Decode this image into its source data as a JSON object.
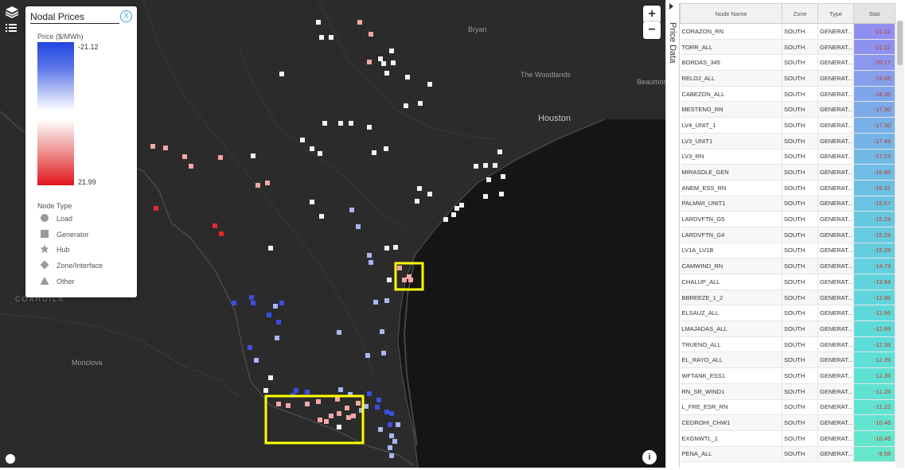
{
  "legend": {
    "title": "Nodal Prices",
    "close_label": "X",
    "units_label": "Price ($/MWh)",
    "value_min": "-21.12",
    "value_max": "21.99",
    "node_type_title": "Node Type",
    "node_types": [
      "Load",
      "Generator",
      "Hub",
      "Zone/Interface",
      "Other"
    ]
  },
  "map": {
    "zoom_in": "+",
    "zoom_out": "−",
    "labels": {
      "bryan": "Bryan",
      "woodlands": "The Woodlands",
      "houston": "Houston",
      "beaumont": "Beaumon",
      "coahuila": "COAHUILA",
      "monclova": "Monclova"
    }
  },
  "side_panel": {
    "tab_label": "Price Data"
  },
  "grid": {
    "columns": [
      "Node Name",
      "Zone",
      "Type",
      "Stat"
    ],
    "rows": [
      [
        "CORAZON_RN",
        "SOUTH",
        "GENERAT...",
        "-21.12"
      ],
      [
        "TORR_ALL",
        "SOUTH",
        "GENERAT...",
        "-21.12"
      ],
      [
        "BORDAS_345",
        "SOUTH",
        "GENERAT...",
        "-20.17"
      ],
      [
        "RELOJ_ALL",
        "SOUTH",
        "GENERAT...",
        "-19.68"
      ],
      [
        "CABEZON_ALL",
        "SOUTH",
        "GENERAT...",
        "-18.36"
      ],
      [
        "MESTENO_RN",
        "SOUTH",
        "GENERAT...",
        "-17.50"
      ],
      [
        "LV4_UNIT_1",
        "SOUTH",
        "GENERAT...",
        "-17.50"
      ],
      [
        "LV3_UNIT1",
        "SOUTH",
        "GENERAT...",
        "-17.49"
      ],
      [
        "LV3_RN",
        "SOUTH",
        "GENERAT...",
        "-17.23"
      ],
      [
        "MIRASOLE_GEN",
        "SOUTH",
        "GENERAT...",
        "-16.86"
      ],
      [
        "ANEM_ESS_RN",
        "SOUTH",
        "GENERAT...",
        "-16.31"
      ],
      [
        "PALMWI_UNIT1",
        "SOUTH",
        "GENERAT...",
        "-15.57"
      ],
      [
        "LARDVFTN_G5",
        "SOUTH",
        "GENERAT...",
        "-15.29"
      ],
      [
        "LARDVFTN_G4",
        "SOUTH",
        "GENERAT...",
        "-15.29"
      ],
      [
        "LV1A_LV1B",
        "SOUTH",
        "GENERAT...",
        "-15.28"
      ],
      [
        "CAMWIND_RN",
        "SOUTH",
        "GENERAT...",
        "-14.73"
      ],
      [
        "CHALUP_ALL",
        "SOUTH",
        "GENERAT...",
        "-13.94"
      ],
      [
        "BBREEZE_1_2",
        "SOUTH",
        "GENERAT...",
        "-12.96"
      ],
      [
        "ELSAUZ_ALL",
        "SOUTH",
        "GENERAT...",
        "-12.96"
      ],
      [
        "LMAJADAS_ALL",
        "SOUTH",
        "GENERAT...",
        "-12.89"
      ],
      [
        "TRUENO_ALL",
        "SOUTH",
        "GENERAT...",
        "-12.39"
      ],
      [
        "EL_RAYO_ALL",
        "SOUTH",
        "GENERAT...",
        "-12.39"
      ],
      [
        "WFTANK_ESS1",
        "SOUTH",
        "GENERAT...",
        "-12.36"
      ],
      [
        "RN_SR_WIND1",
        "SOUTH",
        "GENERAT...",
        "-11.25"
      ],
      [
        "L_FRE_ESR_RN",
        "SOUTH",
        "GENERAT...",
        "-11.22"
      ],
      [
        "CEDROHI_CHW1",
        "SOUTH",
        "GENERAT...",
        "-10.46"
      ],
      [
        "EXGNWTL_1",
        "SOUTH",
        "GENERAT...",
        "-10.46"
      ],
      [
        "PENA_ALL",
        "SOUTH",
        "GENERAT...",
        "-9.58"
      ]
    ],
    "stat_colors": [
      "#8f8ff0",
      "#8e92ef",
      "#8a98ee",
      "#859fec",
      "#80a5ea",
      "#7cabe9",
      "#78b0e7",
      "#75b4e6",
      "#72b8e5",
      "#6fbce4",
      "#6cc0e3",
      "#69c4e2",
      "#67c8e1",
      "#65cbe0",
      "#64cddf",
      "#62d0de",
      "#61d3dd",
      "#60d6dc",
      "#5fd8db",
      "#5edada",
      "#5edcd9",
      "#5edfd7",
      "#5ee1d5",
      "#5fe2d3",
      "#60e3d1",
      "#62e4cf",
      "#64e5cd",
      "#66e6cb"
    ]
  }
}
